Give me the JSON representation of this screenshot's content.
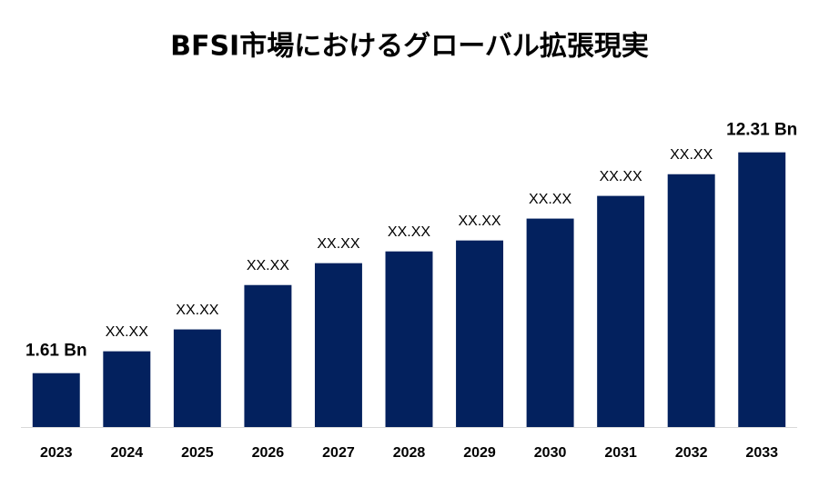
{
  "chart_data": {
    "type": "bar",
    "title": "BFSI市場におけるグローバル拡張現実",
    "categories": [
      "2023",
      "2024",
      "2025",
      "2026",
      "2027",
      "2028",
      "2029",
      "2030",
      "2031",
      "2032",
      "2033"
    ],
    "values": [
      1.61,
      2.67,
      3.73,
      5.88,
      6.94,
      7.51,
      8.04,
      9.1,
      10.2,
      11.25,
      12.31
    ],
    "value_labels": [
      "1.61 Bn",
      "XX.XX",
      "XX.XX",
      "XX.XX",
      "XX.XX",
      "XX.XX",
      "XX.XX",
      "XX.XX",
      "XX.XX",
      "XX.XX",
      "12.31 Bn"
    ],
    "color": "#03215e",
    "ylim": [
      -1,
      13
    ],
    "grid": false
  }
}
